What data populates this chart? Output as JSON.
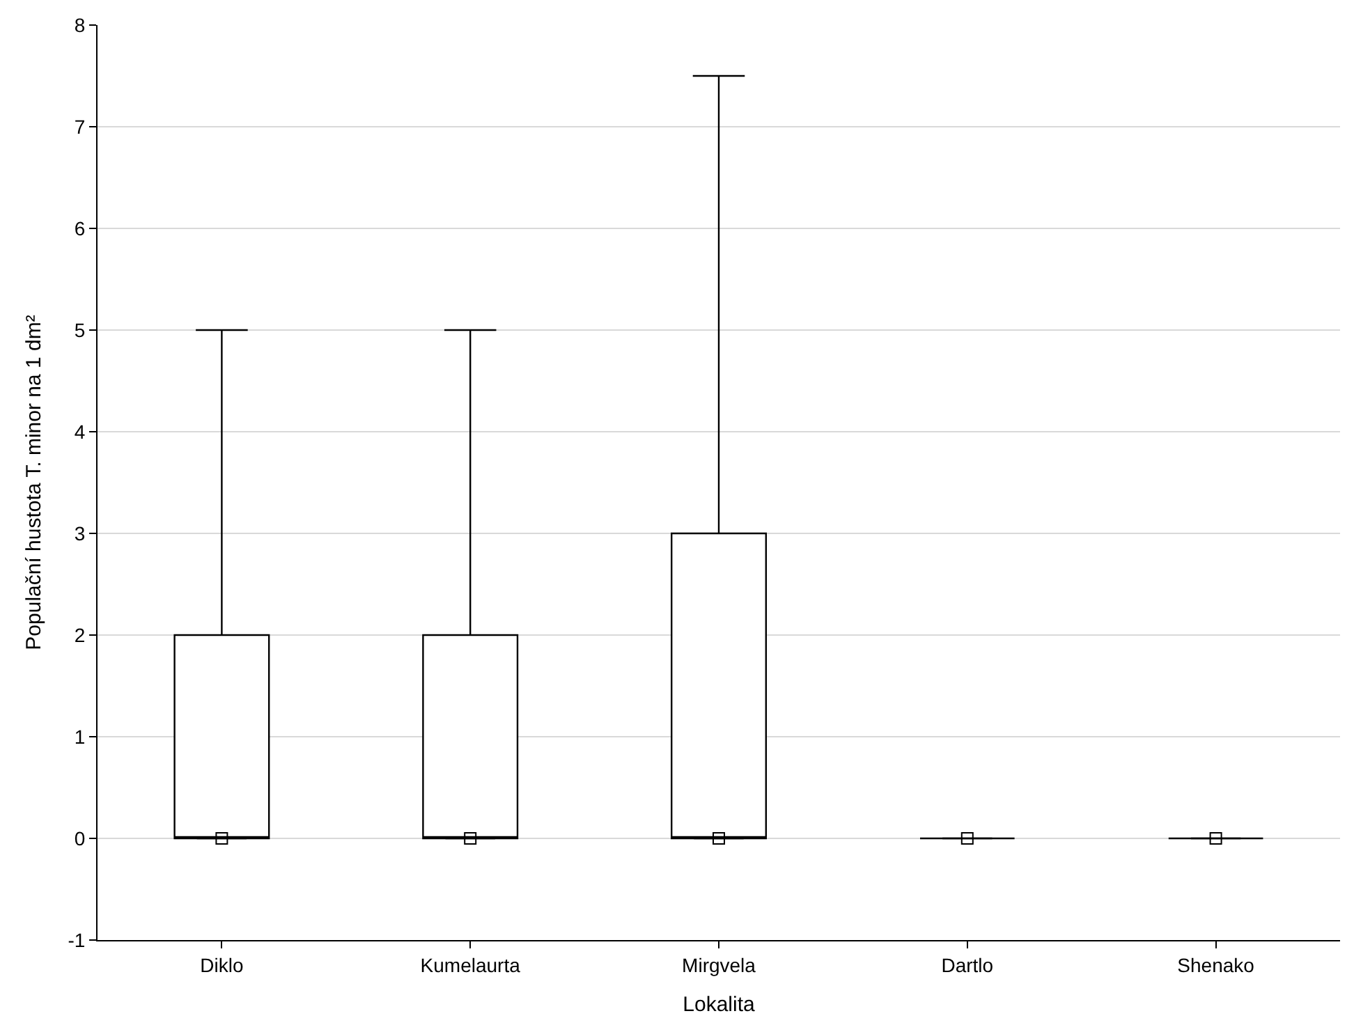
{
  "chart_data": {
    "type": "box",
    "xlabel": "Lokalita",
    "ylabel": "Populační hustota T. minor na 1 dm²",
    "categories": [
      "Diklo",
      "Kumelaurta",
      "Mirgvela",
      "Dartlo",
      "Shenako"
    ],
    "boxes": [
      {
        "low": 0,
        "q1": 0,
        "median": 0,
        "q3": 2,
        "high": 5
      },
      {
        "low": 0,
        "q1": 0,
        "median": 0,
        "q3": 2,
        "high": 5
      },
      {
        "low": 0,
        "q1": 0,
        "median": 0,
        "q3": 3,
        "high": 7.5
      },
      {
        "low": 0,
        "q1": 0,
        "median": 0,
        "q3": 0,
        "high": 0
      },
      {
        "low": 0,
        "q1": 0,
        "median": 0,
        "q3": 0,
        "high": 0
      }
    ],
    "color": "#000000",
    "series": [
      {
        "type": "scatter",
        "x": [
          "Diklo",
          "Kumelaurta",
          "Mirgvela",
          "Dartlo",
          "Shenako"
        ],
        "values": [
          0,
          0,
          0,
          0,
          0
        ],
        "color": "#000000",
        "marker": "square"
      }
    ],
    "ylim": [
      -1,
      8
    ],
    "yticks": [
      -1,
      0,
      1,
      2,
      3,
      4,
      5,
      6,
      7,
      8
    ],
    "grid": "y"
  }
}
